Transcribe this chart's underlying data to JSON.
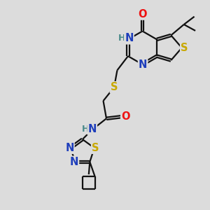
{
  "bg_color": "#dcdcdc",
  "atom_colors": {
    "C": "#000000",
    "N": "#1e3ebb",
    "O": "#ee1111",
    "S": "#c8a800",
    "H": "#4a8a8a"
  },
  "bond_color": "#111111",
  "bond_width": 1.6,
  "dbl_sep": 0.055,
  "fs_main": 10.5,
  "fs_small": 9.0
}
